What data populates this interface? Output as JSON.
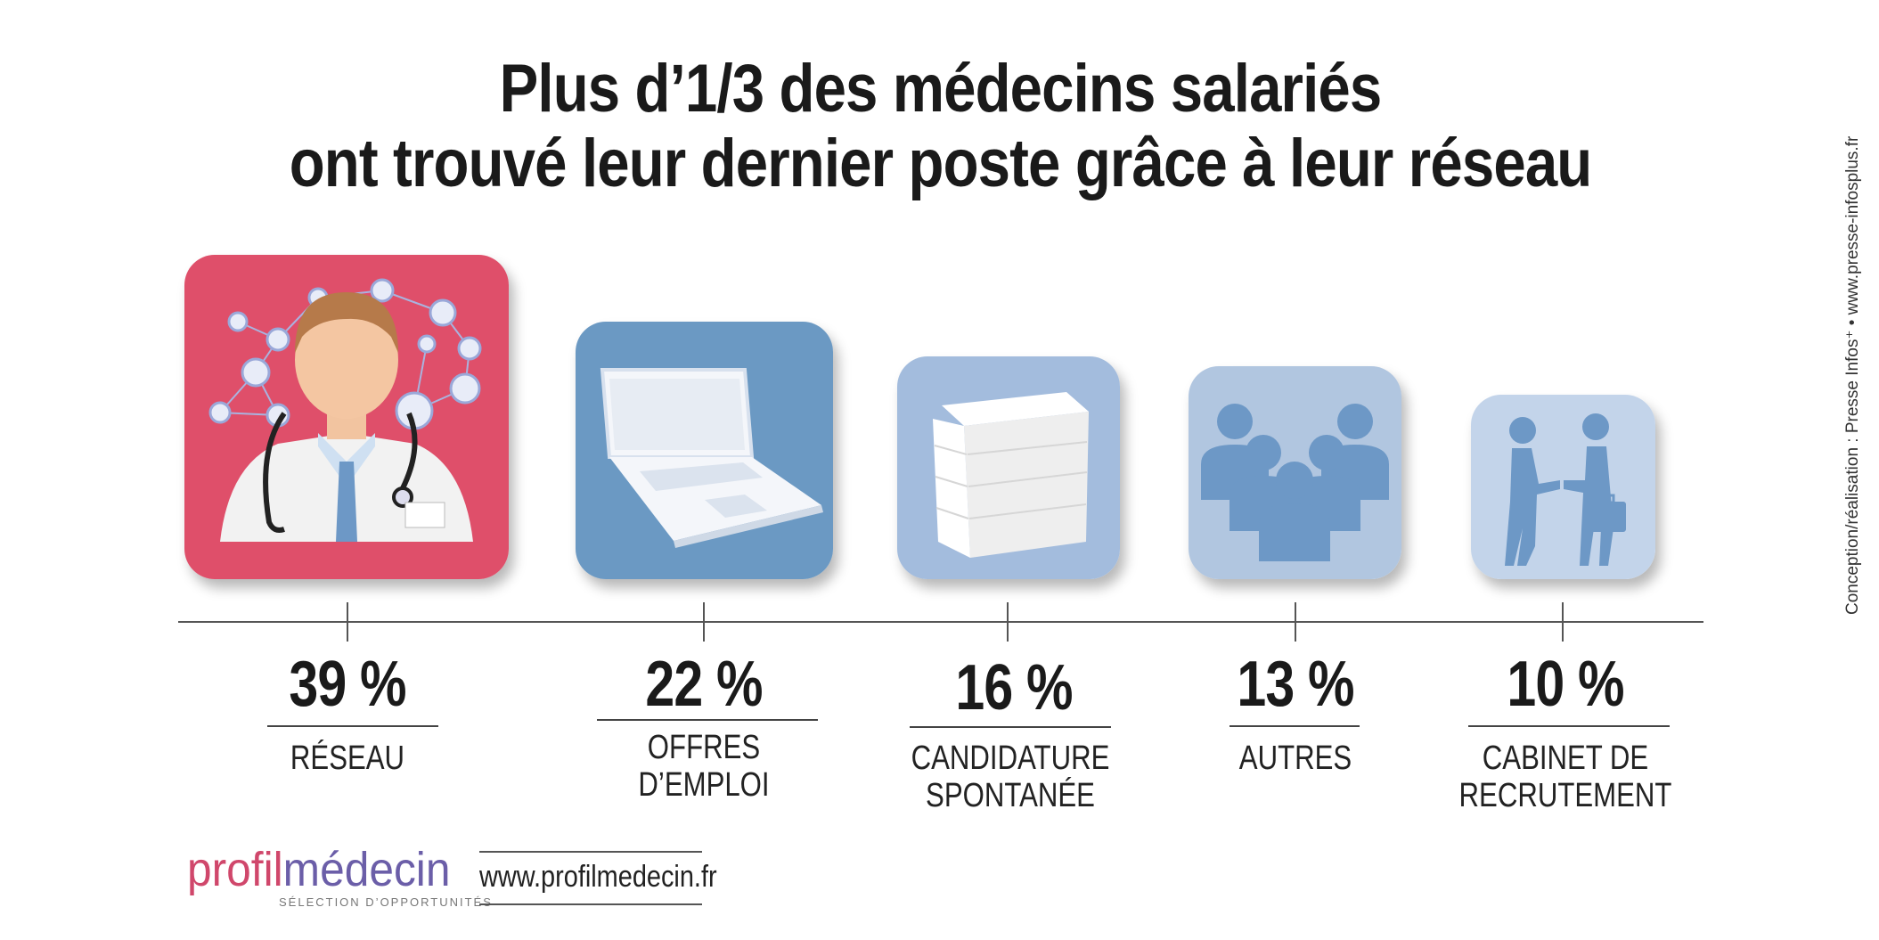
{
  "title": {
    "line1": "Plus d’1/3 des médecins salariés",
    "line2": "ont trouvé leur dernier poste grâce à leur réseau"
  },
  "colors": {
    "reseau": "#df4f6a",
    "offres": "#6b99c3",
    "candidature": "#a3bcdd",
    "autres": "#b1c6e0",
    "cabinet": "#c3d4ea",
    "icon_blue": "#6d98c6"
  },
  "chart_data": {
    "type": "bar",
    "unit": "%",
    "categories": [
      "RÉSEAU",
      "OFFRES D’EMPLOI",
      "CANDIDATURE SPONTANÉE",
      "AUTRES",
      "CABINET DE RECRUTEMENT"
    ],
    "values": [
      39,
      22,
      16,
      13,
      10
    ],
    "icons": [
      "doctor-network-icon",
      "laptop-icon",
      "paper-stack-icon",
      "group-icon",
      "handshake-icon"
    ],
    "display": [
      "39 %",
      "22 %",
      "16 %",
      "13 %",
      "10 %"
    ],
    "label_lines": [
      [
        "RÉSEAU"
      ],
      [
        "OFFRES D’EMPLOI"
      ],
      [
        "CANDIDATURE",
        "SPONTANÉE"
      ],
      [
        "AUTRES"
      ],
      [
        "CABINET DE",
        "RECRUTEMENT"
      ]
    ]
  },
  "footer": {
    "logo_part1": "profil",
    "logo_part2": "médecin",
    "tagline": "SÉLECTION D’OPPORTUNITÉS",
    "url": "www.profilmedecin.fr",
    "credit": "Conception/réalisation : Presse Infos⁺ • www.presse-infosplus.fr"
  }
}
